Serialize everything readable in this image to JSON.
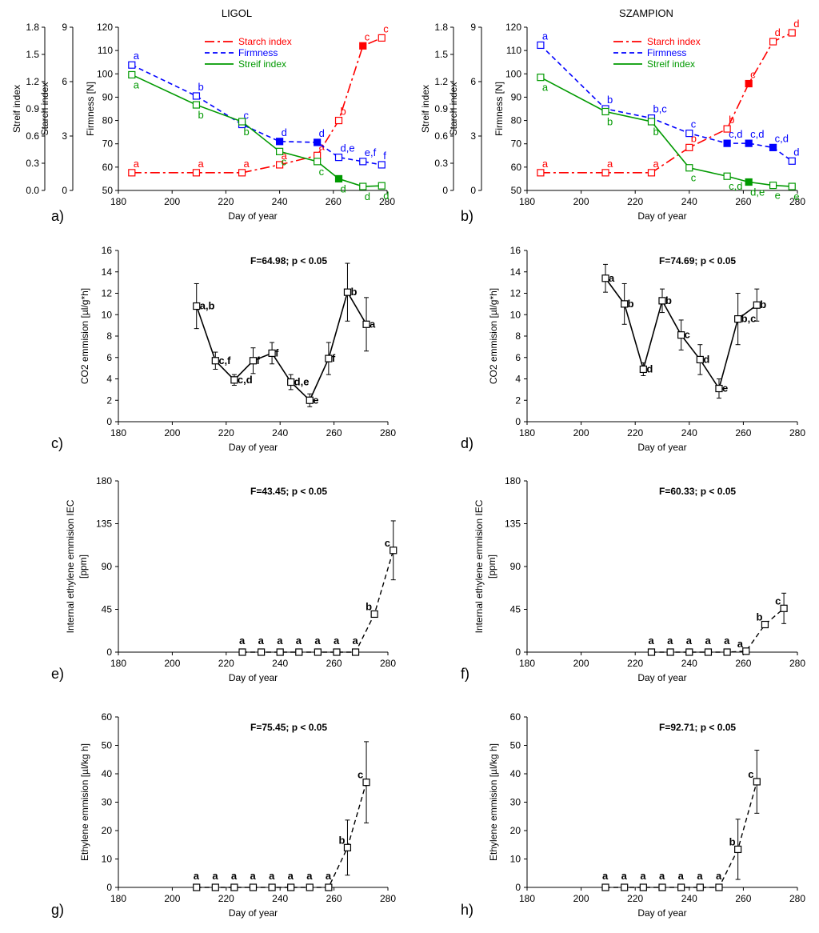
{
  "figure": {
    "description_panels": [
      "a)",
      "b)",
      "c)",
      "d)",
      "e)",
      "f)",
      "g)",
      "h)"
    ]
  },
  "colors": {
    "starch": "#ff0000",
    "firmness": "#0000ff",
    "streif": "#009900",
    "black": "#000000"
  },
  "chart_data": [
    {
      "panel": "a)",
      "type": "line",
      "title": "LIGOL",
      "xlabel": "Day of year",
      "xlim": [
        180,
        280
      ],
      "xticks": [
        180,
        200,
        220,
        240,
        260,
        280
      ],
      "legend_position": "top-center",
      "axes": [
        {
          "id": "streif",
          "label": "Streif index",
          "lim": [
            0,
            1.8
          ],
          "ticks": [
            "0.0",
            "0.3",
            "0.6",
            "0.9",
            "1.2",
            "1.5",
            "1.8"
          ]
        },
        {
          "id": "starch",
          "label": "Starch index",
          "lim": [
            0,
            9
          ],
          "ticks": [
            "0",
            "3",
            "6",
            "9"
          ]
        },
        {
          "id": "firmness",
          "label": "Firmness [N]",
          "lim": [
            50,
            120
          ],
          "ticks": [
            "50",
            "60",
            "70",
            "80",
            "90",
            "100",
            "110",
            "120"
          ]
        }
      ],
      "series": [
        {
          "name": "Starch index",
          "style": "dash-dot",
          "color": "#ff0000",
          "scale": [
            50,
            120
          ],
          "x": [
            185,
            209,
            226,
            240,
            254,
            262,
            271,
            278
          ],
          "y": [
            57.6,
            57.6,
            57.6,
            61,
            65,
            80,
            112,
            115.4
          ],
          "filled": [
            false,
            false,
            false,
            false,
            false,
            false,
            true,
            false
          ],
          "labels": [
            "a",
            "a",
            "a",
            "a",
            "a",
            "b",
            "c",
            "c"
          ]
        },
        {
          "name": "Firmness",
          "style": "dashed",
          "color": "#0000ff",
          "scale": [
            50,
            120
          ],
          "x": [
            185,
            209,
            226,
            240,
            254,
            262,
            271,
            278
          ],
          "y": [
            103.8,
            90.5,
            78.3,
            71,
            70.6,
            64.2,
            62.4,
            61
          ],
          "filled": [
            false,
            false,
            false,
            true,
            true,
            false,
            false,
            false
          ],
          "labels": [
            "a",
            "b",
            "c",
            "d",
            "d",
            "d,e",
            "e,f",
            "f"
          ]
        },
        {
          "name": "Streif index",
          "style": "solid",
          "color": "#009900",
          "scale": [
            50,
            120
          ],
          "x": [
            185,
            209,
            226,
            240,
            254,
            262,
            271,
            278
          ],
          "y": [
            99.6,
            86.7,
            79.5,
            66.7,
            62.4,
            55,
            51.7,
            52
          ],
          "filled": [
            false,
            false,
            false,
            false,
            false,
            true,
            false,
            false
          ],
          "labels": [
            "a",
            "b",
            "b",
            "c",
            "c",
            "d",
            "d",
            "d"
          ]
        }
      ]
    },
    {
      "panel": "b)",
      "type": "line",
      "title": "SZAMPION",
      "xlabel": "Day of year",
      "xlim": [
        180,
        280
      ],
      "xticks": [
        180,
        200,
        220,
        240,
        260,
        280
      ],
      "legend_position": "top-center",
      "axes": [
        {
          "id": "streif",
          "label": "Streif index",
          "lim": [
            0,
            1.8
          ],
          "ticks": [
            "0",
            "0.3",
            "0.6",
            "0.9",
            "1.2",
            "1.5",
            "1.8"
          ]
        },
        {
          "id": "starch",
          "label": "Starch index",
          "lim": [
            0,
            9
          ],
          "ticks": [
            "0",
            "3",
            "6",
            "9"
          ]
        },
        {
          "id": "firmness",
          "label": "Firmness [N]",
          "lim": [
            50,
            120
          ],
          "ticks": [
            "50",
            "60",
            "70",
            "80",
            "90",
            "100",
            "110",
            "120"
          ]
        }
      ],
      "series": [
        {
          "name": "Starch index",
          "style": "dash-dot",
          "color": "#ff0000",
          "scale": [
            50,
            120
          ],
          "x": [
            185,
            209,
            226,
            240,
            254,
            262,
            271,
            278
          ],
          "y": [
            57.6,
            57.6,
            57.6,
            68.4,
            76.4,
            95.8,
            113.8,
            117.6
          ],
          "filled": [
            false,
            false,
            false,
            false,
            false,
            true,
            false,
            false
          ],
          "labels": [
            "a",
            "a",
            "a",
            "b",
            "b",
            "c",
            "d",
            "d"
          ]
        },
        {
          "name": "Firmness",
          "style": "dashed",
          "color": "#0000ff",
          "scale": [
            50,
            120
          ],
          "x": [
            185,
            209,
            226,
            240,
            254,
            262,
            271,
            278
          ],
          "y": [
            112.3,
            85,
            81,
            74.5,
            70.2,
            70.2,
            68.4,
            62.6
          ],
          "filled": [
            false,
            false,
            false,
            false,
            true,
            true,
            true,
            false
          ],
          "labels": [
            "a",
            "b",
            "b,c",
            "c",
            "c,d",
            "c,d",
            "c,d",
            "d"
          ]
        },
        {
          "name": "Streif index",
          "style": "solid",
          "color": "#009900",
          "scale": [
            50,
            120
          ],
          "x": [
            185,
            209,
            226,
            240,
            254,
            262,
            271,
            278
          ],
          "y": [
            98.5,
            83.8,
            79.5,
            59.7,
            56.1,
            53.6,
            52.2,
            51.7
          ],
          "filled": [
            false,
            false,
            false,
            false,
            false,
            true,
            false,
            false
          ],
          "labels": [
            "a",
            "b",
            "b",
            "c",
            "c,d",
            "d,e",
            "e",
            "e"
          ]
        }
      ]
    },
    {
      "panel": "c)",
      "type": "line",
      "xlabel": "Day of year",
      "ylabel": "CO2 emmision [µl/g*h]",
      "xlim": [
        180,
        280
      ],
      "ylim": [
        0,
        16
      ],
      "xticks": [
        180,
        200,
        220,
        240,
        260,
        280
      ],
      "yticks": [
        0,
        2,
        4,
        6,
        8,
        10,
        12,
        14,
        16
      ],
      "annotation": "F=64.98; p < 0.05",
      "series": [
        {
          "name": "CO2",
          "style": "solid",
          "color": "#000000",
          "x": [
            209,
            216,
            223,
            230,
            237,
            244,
            251,
            258,
            265,
            272
          ],
          "y": [
            10.8,
            5.7,
            3.9,
            5.7,
            6.4,
            3.7,
            2.0,
            5.9,
            12.1,
            9.1
          ],
          "err": [
            2.1,
            0.8,
            0.5,
            1.2,
            1.0,
            0.7,
            0.6,
            1.5,
            2.7,
            2.5
          ],
          "labels": [
            "a,b",
            "c,f",
            "c,d",
            "f",
            "f",
            "d,e",
            "e",
            "f",
            "b",
            "a"
          ]
        }
      ]
    },
    {
      "panel": "d)",
      "type": "line",
      "xlabel": "Day of year",
      "ylabel": "CO2 emmision [µl/g*h]",
      "xlim": [
        180,
        280
      ],
      "ylim": [
        0,
        16
      ],
      "xticks": [
        180,
        200,
        220,
        240,
        260,
        280
      ],
      "yticks": [
        0,
        2,
        4,
        6,
        8,
        10,
        12,
        14,
        16
      ],
      "annotation": "F=74.69; p < 0.05",
      "series": [
        {
          "name": "CO2",
          "style": "solid",
          "color": "#000000",
          "x": [
            209,
            216,
            223,
            230,
            237,
            244,
            251,
            258,
            265
          ],
          "y": [
            13.4,
            11.0,
            4.9,
            11.3,
            8.1,
            5.8,
            3.1,
            9.6,
            10.9
          ],
          "err": [
            1.3,
            1.9,
            0.6,
            1.1,
            1.4,
            1.4,
            0.9,
            2.4,
            1.5
          ],
          "labels": [
            "a",
            "b",
            "d",
            "b",
            "c",
            "d",
            "e",
            "b,c",
            "b"
          ]
        }
      ]
    },
    {
      "panel": "e)",
      "type": "line",
      "xlabel": "Day of year",
      "ylabel": [
        "Internal ethylene emmision IEC",
        "[ppm]"
      ],
      "xlim": [
        180,
        280
      ],
      "ylim": [
        0,
        180
      ],
      "xticks": [
        180,
        200,
        220,
        240,
        260,
        280
      ],
      "yticks": [
        0,
        45,
        90,
        135,
        180
      ],
      "annotation": "F=43.45; p < 0.05",
      "series": [
        {
          "name": "IEC",
          "style": "dashed",
          "color": "#000000",
          "x": [
            226,
            233,
            240,
            247,
            254,
            261,
            268,
            275,
            282
          ],
          "y": [
            0,
            0,
            0,
            0,
            0,
            0,
            0,
            40,
            107
          ],
          "err": [
            0,
            0,
            0,
            0,
            0,
            0,
            0,
            3,
            31
          ],
          "labels": [
            "a",
            "a",
            "a",
            "a",
            "a",
            "a",
            "a",
            "b",
            "c"
          ]
        }
      ]
    },
    {
      "panel": "f)",
      "type": "line",
      "xlabel": "Day of year",
      "ylabel": [
        "Internal ethylene emmision IEC",
        "[ppm]"
      ],
      "xlim": [
        180,
        280
      ],
      "ylim": [
        0,
        180
      ],
      "xticks": [
        180,
        200,
        220,
        240,
        260,
        280
      ],
      "yticks": [
        0,
        45,
        90,
        135,
        180
      ],
      "annotation": "F=60.33; p < 0.05",
      "series": [
        {
          "name": "IEC",
          "style": "dashed",
          "color": "#000000",
          "x": [
            226,
            233,
            240,
            247,
            254,
            261,
            268,
            275
          ],
          "y": [
            0,
            0,
            0,
            0,
            0,
            1,
            29,
            46
          ],
          "err": [
            0,
            0,
            0,
            0,
            0,
            0,
            3,
            16
          ],
          "labels": [
            "a",
            "a",
            "a",
            "a",
            "a",
            "a",
            "b",
            "c"
          ]
        }
      ]
    },
    {
      "panel": "g)",
      "type": "line",
      "xlabel": "Day of year",
      "ylabel": "Ethylene emmision [µl/kg h]",
      "xlim": [
        180,
        280
      ],
      "ylim": [
        0,
        60
      ],
      "xticks": [
        180,
        200,
        220,
        240,
        260,
        280
      ],
      "yticks": [
        0,
        10,
        20,
        30,
        40,
        50,
        60
      ],
      "annotation": "F=75.45; p < 0.05",
      "series": [
        {
          "name": "Ethylene",
          "style": "dashed",
          "color": "#000000",
          "x": [
            209,
            216,
            223,
            230,
            237,
            244,
            251,
            258,
            265,
            272
          ],
          "y": [
            0,
            0,
            0,
            0,
            0,
            0,
            0,
            0,
            14,
            37
          ],
          "err": [
            0,
            0,
            0,
            0,
            0,
            0,
            0,
            0,
            9.7,
            14.3
          ],
          "labels": [
            "a",
            "a",
            "a",
            "a",
            "a",
            "a",
            "a",
            "a",
            "b",
            "c"
          ]
        }
      ]
    },
    {
      "panel": "h)",
      "type": "line",
      "xlabel": "Day of year",
      "ylabel": "Ethylene emmision [µl/kg h]",
      "xlim": [
        180,
        280
      ],
      "ylim": [
        0,
        60
      ],
      "xticks": [
        180,
        200,
        220,
        240,
        260,
        280
      ],
      "yticks": [
        0,
        10,
        20,
        30,
        40,
        50,
        60
      ],
      "annotation": "F=92.71; p < 0.05",
      "series": [
        {
          "name": "Ethylene",
          "style": "dashed",
          "color": "#000000",
          "x": [
            209,
            216,
            223,
            230,
            237,
            244,
            251,
            258,
            265
          ],
          "y": [
            0,
            0,
            0,
            0,
            0,
            0,
            0,
            13.4,
            37.2
          ],
          "err": [
            0,
            0,
            0,
            0,
            0,
            0,
            0,
            10.6,
            11.1
          ],
          "labels": [
            "a",
            "a",
            "a",
            "a",
            "a",
            "a",
            "a",
            "b",
            "c"
          ]
        }
      ]
    }
  ]
}
